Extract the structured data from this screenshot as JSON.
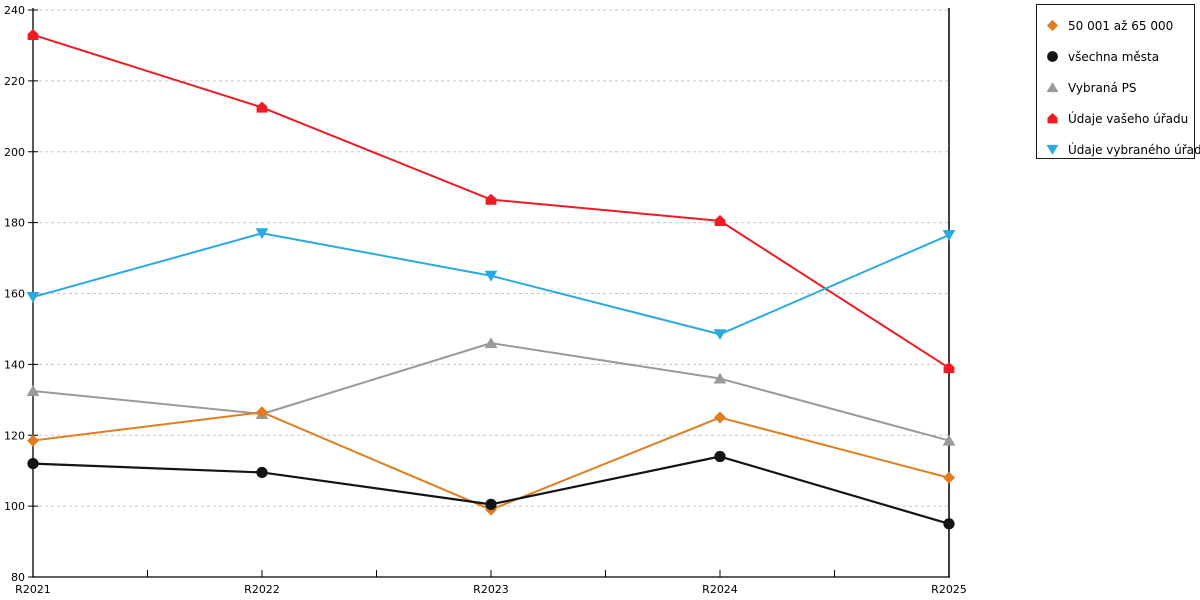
{
  "chart_data": {
    "type": "line",
    "title": "",
    "xlabel": "",
    "ylabel": "",
    "x_categories": [
      "R2021",
      "R2022",
      "R2023",
      "R2024",
      "R2025"
    ],
    "ylim": [
      80,
      240
    ],
    "y_ticks": [
      240,
      220,
      200,
      180,
      160,
      140,
      120,
      100,
      80
    ],
    "grid": "horizontal-dashed",
    "legend_position": "top-right-boxed",
    "series": [
      {
        "name": "50 001 až 65 000",
        "marker": "diamond",
        "color": "#E07D1E",
        "line_width": 2,
        "values": [
          118.5,
          126.5,
          99,
          125,
          108
        ]
      },
      {
        "name": "všechna města",
        "marker": "circle",
        "color": "#141414",
        "line_width": 2.2,
        "values": [
          112,
          109.5,
          100.5,
          114,
          95
        ]
      },
      {
        "name": "Vybraná PS",
        "marker": "triangle-up",
        "color": "#9A9A9A",
        "line_width": 2,
        "values": [
          132.5,
          126,
          146,
          136,
          118.5
        ]
      },
      {
        "name": "Údaje vašeho úřadu",
        "marker": "pentagon",
        "color": "#ED1C24",
        "line_width": 2,
        "values": [
          233,
          212.5,
          186.5,
          180.5,
          139
        ]
      },
      {
        "name": "Údaje vybraného úřadu",
        "marker": "triangle-down",
        "color": "#29ABE2",
        "line_width": 2,
        "values": [
          159,
          177,
          165,
          148.5,
          176.5
        ]
      }
    ],
    "draw_order": [
      2,
      0,
      1,
      3,
      4
    ],
    "colors": {
      "axis": "#000000",
      "gridline": "#C6C6C6",
      "background": "#FFFFFF",
      "legend_border": "#1A1A1A"
    }
  }
}
